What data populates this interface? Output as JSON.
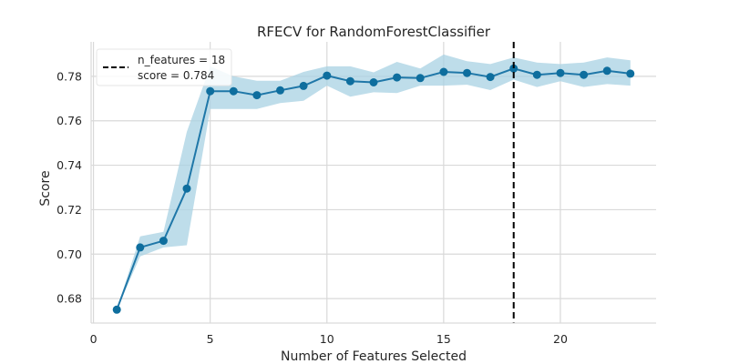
{
  "chart_data": {
    "type": "line",
    "title": "RFECV for RandomForestClassifier",
    "xlabel": "Number of Features Selected",
    "ylabel": "Score",
    "xlim": [
      -0.1,
      24.1
    ],
    "ylim": [
      0.669,
      0.7955
    ],
    "xticks": [
      0,
      5,
      10,
      15,
      20
    ],
    "yticks": [
      0.68,
      0.7,
      0.72,
      0.74,
      0.76,
      0.78
    ],
    "ytick_labels": [
      "0.68",
      "0.70",
      "0.72",
      "0.74",
      "0.76",
      "0.78"
    ],
    "grid": true,
    "legend_position": "top-left",
    "series": [
      {
        "x": [
          1,
          2,
          3,
          4,
          5,
          6,
          7,
          8,
          9,
          10,
          11,
          12,
          13,
          14,
          15,
          16,
          17,
          18,
          19,
          20,
          21,
          22,
          23
        ],
        "y": [
          0.675,
          0.703,
          0.706,
          0.7295,
          0.7733,
          0.7733,
          0.7715,
          0.7737,
          0.7757,
          0.7803,
          0.7778,
          0.7773,
          0.7795,
          0.7792,
          0.782,
          0.7815,
          0.7797,
          0.7835,
          0.7807,
          0.7815,
          0.7807,
          0.7825,
          0.7812
        ],
        "upper": [
          0.675,
          0.708,
          0.71,
          0.755,
          0.7845,
          0.78,
          0.778,
          0.778,
          0.782,
          0.7845,
          0.7845,
          0.7818,
          0.7865,
          0.7835,
          0.7898,
          0.7868,
          0.7855,
          0.7885,
          0.7862,
          0.7855,
          0.7862,
          0.7885,
          0.7872
        ],
        "lower": [
          0.675,
          0.699,
          0.703,
          0.704,
          0.7653,
          0.7653,
          0.7653,
          0.768,
          0.769,
          0.7758,
          0.7708,
          0.7728,
          0.7725,
          0.7758,
          0.7758,
          0.7762,
          0.7738,
          0.7785,
          0.7752,
          0.7778,
          0.7752,
          0.7765,
          0.7758
        ]
      }
    ],
    "optimal": {
      "n_features": 18,
      "legend_label_1": "n_features = 18",
      "legend_label_2": "score = 0.784"
    },
    "colors": {
      "line": "#1f77a8",
      "marker": "#0e6e9e",
      "band": "#a8d1e3",
      "grid": "#d9d9d9",
      "vline": "#000000"
    }
  }
}
